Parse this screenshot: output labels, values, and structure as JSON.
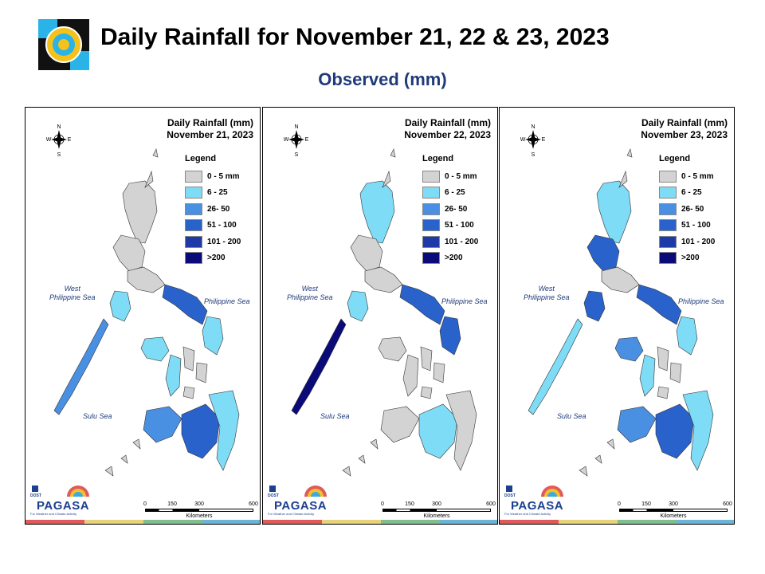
{
  "header": {
    "title": "Daily Rainfall for November 21, 22 & 23, 2023",
    "subtitle": "Observed (mm)"
  },
  "legend": {
    "heading": "Legend",
    "classes": [
      {
        "label": "0 - 5 mm",
        "color": "#d3d3d3"
      },
      {
        "label": "6 - 25",
        "color": "#7fdcf7"
      },
      {
        "label": "26- 50",
        "color": "#4a90e2"
      },
      {
        "label": "51 - 100",
        "color": "#2a62cc"
      },
      {
        "label": "101 - 200",
        "color": "#1d3aa8"
      },
      {
        "label": ">200",
        "color": "#0a0a78"
      }
    ]
  },
  "seas": {
    "west": "West\nPhilippine Sea",
    "east": "Philippine Sea",
    "sulu": "Sulu Sea"
  },
  "compass": {
    "n": "N",
    "s": "S",
    "e": "E",
    "w": "W"
  },
  "scale": {
    "ticks": [
      "0",
      "150",
      "300",
      "600"
    ],
    "unit": "Kilometers"
  },
  "branding": {
    "dost": "DOST",
    "name": "PAGASA",
    "tagline": "For Weather and Climate Activity"
  },
  "stripe_colors": [
    "#e15a5a",
    "#e8d27a",
    "#7fbf8f",
    "#6bb6d8"
  ],
  "panels": [
    {
      "heading": "Daily Rainfall (mm)",
      "date": "November 21, 2023",
      "zones": [
        {
          "region": "bicol",
          "class": 3
        },
        {
          "region": "mindoro",
          "class": 1
        },
        {
          "region": "panay",
          "class": 1
        },
        {
          "region": "palawan",
          "class": 2
        },
        {
          "region": "zamboanga",
          "class": 2
        },
        {
          "region": "mindanao_east",
          "class": 1
        },
        {
          "region": "mindanao_central",
          "class": 3
        },
        {
          "region": "samar",
          "class": 1
        },
        {
          "region": "negros",
          "class": 1
        }
      ]
    },
    {
      "heading": "Daily Rainfall (mm)",
      "date": "November 22, 2023",
      "zones": [
        {
          "region": "bicol",
          "class": 3
        },
        {
          "region": "samar",
          "class": 3
        },
        {
          "region": "mindoro",
          "class": 1
        },
        {
          "region": "palawan",
          "class": 5
        },
        {
          "region": "luzon_north",
          "class": 1
        },
        {
          "region": "mindanao_central",
          "class": 1
        }
      ]
    },
    {
      "heading": "Daily Rainfall (mm)",
      "date": "November 23, 2023",
      "zones": [
        {
          "region": "luzon_north",
          "class": 1
        },
        {
          "region": "luzon_central",
          "class": 3
        },
        {
          "region": "bicol",
          "class": 3
        },
        {
          "region": "mindoro",
          "class": 3
        },
        {
          "region": "panay",
          "class": 2
        },
        {
          "region": "palawan",
          "class": 1
        },
        {
          "region": "zamboanga",
          "class": 2
        },
        {
          "region": "mindanao_central",
          "class": 3
        },
        {
          "region": "mindanao_east",
          "class": 1
        },
        {
          "region": "samar",
          "class": 1
        },
        {
          "region": "negros",
          "class": 1
        }
      ]
    }
  ]
}
